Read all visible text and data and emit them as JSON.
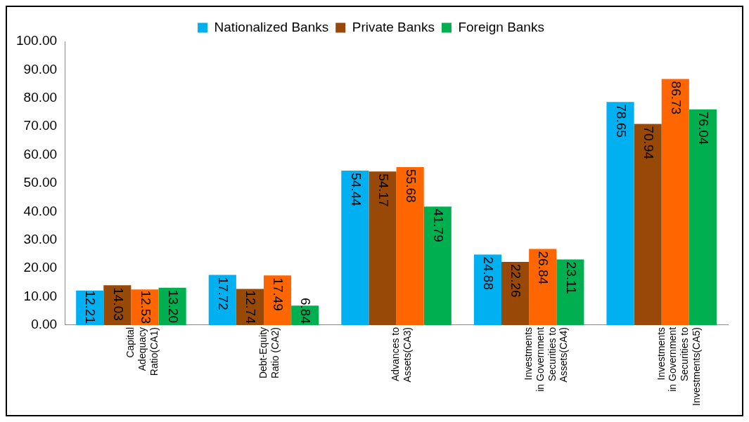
{
  "chart_data": {
    "type": "bar",
    "categories": [
      "Capital Adequacy Ratio(CA1)",
      "Debt-Equity Ratio (CA2)",
      "Advances to Assets(CA3)",
      "Investments in Government Securities to Assets(CA4)",
      "Investments in Government Securities to Investments(CA5)"
    ],
    "series": [
      {
        "name": "Nationalized Banks",
        "color": "#00b0f0",
        "values": [
          12.21,
          17.72,
          54.44,
          24.88,
          78.65
        ],
        "value_labels": [
          "12.21",
          "17.72",
          "54.44",
          "24.88",
          "78.65"
        ]
      },
      {
        "name": "Private Banks",
        "color": "#984807",
        "values": [
          14.03,
          12.74,
          54.17,
          22.26,
          70.94
        ],
        "value_labels": [
          "14.03",
          "12.74",
          "54.17",
          "22.26",
          "70.94"
        ]
      },
      {
        "color": "#ff6600",
        "values": [
          12.53,
          17.49,
          55.68,
          26.84,
          86.73
        ],
        "value_labels": [
          "12.53",
          "17.49",
          "55.68",
          "26.84",
          "86.73"
        ]
      },
      {
        "name": "Foreign Banks",
        "color": "#00b050",
        "values": [
          13.2,
          6.84,
          41.79,
          23.11,
          76.04
        ],
        "value_labels": [
          "13.20",
          "6.84",
          "41.79",
          "23.11",
          "76.04"
        ]
      }
    ],
    "ylim": [
      0,
      100
    ],
    "yticks": [
      {
        "value": 0,
        "label": "0.00"
      },
      {
        "value": 10,
        "label": "10.00"
      },
      {
        "value": 20,
        "label": "20.00"
      },
      {
        "value": 30,
        "label": "30.00"
      },
      {
        "value": 40,
        "label": "40.00"
      },
      {
        "value": 50,
        "label": "50.00"
      },
      {
        "value": 60,
        "label": "60.00"
      },
      {
        "value": 70,
        "label": "70.00"
      },
      {
        "value": 80,
        "label": "80.00"
      },
      {
        "value": 90,
        "label": "90.00"
      },
      {
        "value": 100,
        "label": "100.00"
      }
    ],
    "grid": false,
    "legend": "top"
  }
}
